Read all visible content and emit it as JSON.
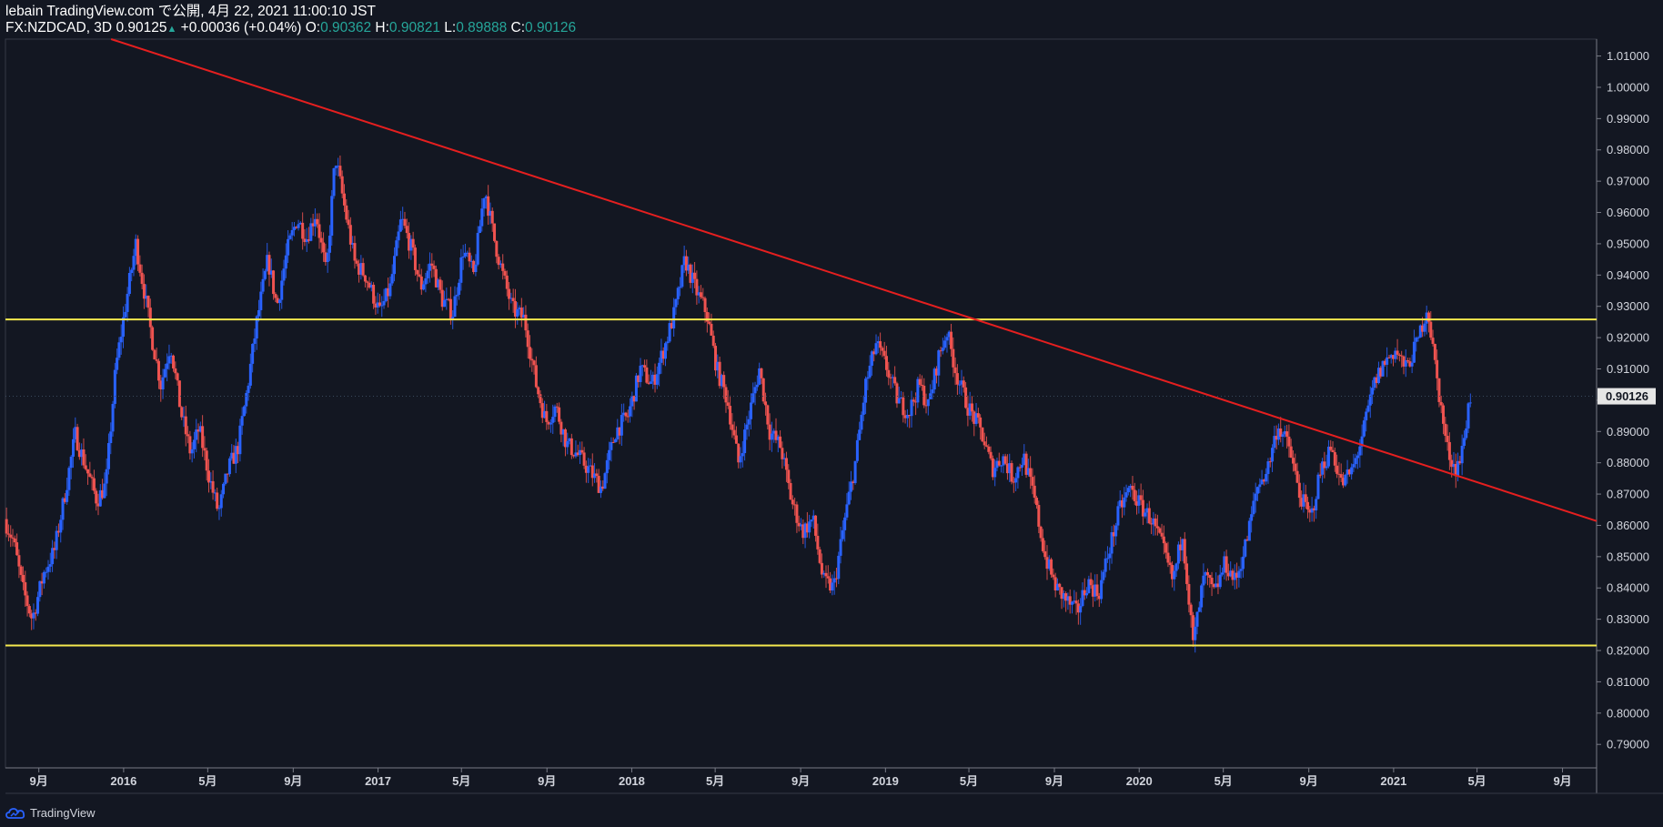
{
  "header": {
    "line1": "lebain TradingView.com で公開, 4月 22, 2021 11:00:10 JST",
    "symbol": "FX:NZDCAD, 3D",
    "last": "0.90125",
    "up_arrow": "▲",
    "change": "+0.00036 (+0.04%)",
    "o_label": "O:",
    "o_value": "0.90362",
    "h_label": "H:",
    "h_value": "0.90821",
    "l_label": "L:",
    "l_value": "0.89888",
    "c_label": "C:",
    "c_value": "0.90126"
  },
  "footer": {
    "brand": "TradingView",
    "logo_icon": "tradingview-cloud-icon"
  },
  "colors": {
    "background": "#131722",
    "up": "#2962ff",
    "down": "#ef5350",
    "trendline": "#e51f1f",
    "level": "#f5e94e",
    "axis_text": "#d1d4dc",
    "value_green": "#26a69a"
  },
  "chart_data": {
    "type": "candlestick",
    "symbol": "FX:NZDCAD",
    "timeframe": "3D",
    "title": "",
    "xlabel": "",
    "ylabel": "",
    "x_range": [
      "2015-07-15",
      "2021-10-20"
    ],
    "ylim": [
      0.7825,
      1.0154
    ],
    "y_ticks": [
      "1.01000",
      "1.00000",
      "0.99000",
      "0.98000",
      "0.97000",
      "0.96000",
      "0.95000",
      "0.94000",
      "0.93000",
      "0.92000",
      "0.91000",
      "0.90000",
      "0.89000",
      "0.88000",
      "0.87000",
      "0.86000",
      "0.85000",
      "0.84000",
      "0.83000",
      "0.82000",
      "0.81000",
      "0.80000",
      "0.79000"
    ],
    "y_tick_values": [
      1.01,
      1.0,
      0.99,
      0.98,
      0.97,
      0.96,
      0.95,
      0.94,
      0.93,
      0.92,
      0.91,
      0.9,
      0.89,
      0.88,
      0.87,
      0.86,
      0.85,
      0.84,
      0.83,
      0.82,
      0.81,
      0.8,
      0.79
    ],
    "x_ticks": [
      {
        "label": "9月",
        "date": "2015-09-01"
      },
      {
        "label": "2016",
        "date": "2016-01-01"
      },
      {
        "label": "5月",
        "date": "2016-05-01"
      },
      {
        "label": "9月",
        "date": "2016-09-01"
      },
      {
        "label": "2017",
        "date": "2017-01-01"
      },
      {
        "label": "5月",
        "date": "2017-05-01"
      },
      {
        "label": "9月",
        "date": "2017-09-01"
      },
      {
        "label": "2018",
        "date": "2018-01-01"
      },
      {
        "label": "5月",
        "date": "2018-05-01"
      },
      {
        "label": "9月",
        "date": "2018-09-01"
      },
      {
        "label": "2019",
        "date": "2019-01-01"
      },
      {
        "label": "5月",
        "date": "2019-05-01"
      },
      {
        "label": "9月",
        "date": "2019-09-01"
      },
      {
        "label": "2020",
        "date": "2020-01-01"
      },
      {
        "label": "5月",
        "date": "2020-05-01"
      },
      {
        "label": "9月",
        "date": "2020-09-01"
      },
      {
        "label": "2021",
        "date": "2021-01-01"
      },
      {
        "label": "5月",
        "date": "2021-05-01"
      },
      {
        "label": "9月",
        "date": "2021-09-01"
      }
    ],
    "current_price_label": "0.90126",
    "current_price": 0.90126,
    "path": [
      [
        "2015-07-15",
        0.862
      ],
      [
        "2015-07-28",
        0.855
      ],
      [
        "2015-08-10",
        0.84
      ],
      [
        "2015-08-24",
        0.83
      ],
      [
        "2015-09-10",
        0.845
      ],
      [
        "2015-09-25",
        0.852
      ],
      [
        "2015-10-10",
        0.87
      ],
      [
        "2015-10-25",
        0.889
      ],
      [
        "2015-11-10",
        0.878
      ],
      [
        "2015-11-25",
        0.868
      ],
      [
        "2015-12-08",
        0.873
      ],
      [
        "2015-12-22",
        0.91
      ],
      [
        "2016-01-05",
        0.93
      ],
      [
        "2016-01-20",
        0.95
      ],
      [
        "2016-02-01",
        0.935
      ],
      [
        "2016-02-12",
        0.92
      ],
      [
        "2016-02-25",
        0.905
      ],
      [
        "2016-03-10",
        0.918
      ],
      [
        "2016-03-25",
        0.896
      ],
      [
        "2016-04-08",
        0.883
      ],
      [
        "2016-04-20",
        0.891
      ],
      [
        "2016-05-05",
        0.875
      ],
      [
        "2016-05-18",
        0.864
      ],
      [
        "2016-06-01",
        0.878
      ],
      [
        "2016-06-15",
        0.885
      ],
      [
        "2016-06-28",
        0.903
      ],
      [
        "2016-07-12",
        0.925
      ],
      [
        "2016-07-28",
        0.945
      ],
      [
        "2016-08-10",
        0.93
      ],
      [
        "2016-08-25",
        0.948
      ],
      [
        "2016-09-08",
        0.958
      ],
      [
        "2016-09-22",
        0.952
      ],
      [
        "2016-10-05",
        0.96
      ],
      [
        "2016-10-20",
        0.94
      ],
      [
        "2016-11-02",
        0.978
      ],
      [
        "2016-11-15",
        0.962
      ],
      [
        "2016-11-30",
        0.944
      ],
      [
        "2016-12-15",
        0.94
      ],
      [
        "2017-01-05",
        0.928
      ],
      [
        "2017-01-20",
        0.936
      ],
      [
        "2017-02-05",
        0.958
      ],
      [
        "2017-02-20",
        0.948
      ],
      [
        "2017-03-05",
        0.936
      ],
      [
        "2017-03-20",
        0.944
      ],
      [
        "2017-04-05",
        0.932
      ],
      [
        "2017-04-20",
        0.928
      ],
      [
        "2017-05-05",
        0.948
      ],
      [
        "2017-05-20",
        0.94
      ],
      [
        "2017-06-05",
        0.968
      ],
      [
        "2017-06-18",
        0.952
      ],
      [
        "2017-07-01",
        0.94
      ],
      [
        "2017-07-15",
        0.929
      ],
      [
        "2017-08-01",
        0.926
      ],
      [
        "2017-08-18",
        0.905
      ],
      [
        "2017-09-01",
        0.893
      ],
      [
        "2017-09-15",
        0.898
      ],
      [
        "2017-10-01",
        0.886
      ],
      [
        "2017-10-15",
        0.883
      ],
      [
        "2017-11-01",
        0.878
      ],
      [
        "2017-11-20",
        0.872
      ],
      [
        "2017-12-10",
        0.89
      ],
      [
        "2017-12-28",
        0.895
      ],
      [
        "2018-01-15",
        0.91
      ],
      [
        "2018-02-01",
        0.905
      ],
      [
        "2018-02-20",
        0.918
      ],
      [
        "2018-03-05",
        0.928
      ],
      [
        "2018-03-20",
        0.945
      ],
      [
        "2018-04-05",
        0.935
      ],
      [
        "2018-04-20",
        0.928
      ],
      [
        "2018-05-05",
        0.91
      ],
      [
        "2018-05-20",
        0.9
      ],
      [
        "2018-06-05",
        0.88
      ],
      [
        "2018-06-20",
        0.895
      ],
      [
        "2018-07-05",
        0.91
      ],
      [
        "2018-07-20",
        0.89
      ],
      [
        "2018-08-05",
        0.885
      ],
      [
        "2018-08-20",
        0.868
      ],
      [
        "2018-09-05",
        0.858
      ],
      [
        "2018-09-20",
        0.862
      ],
      [
        "2018-10-05",
        0.842
      ],
      [
        "2018-10-20",
        0.84
      ],
      [
        "2018-11-05",
        0.862
      ],
      [
        "2018-11-20",
        0.88
      ],
      [
        "2018-12-05",
        0.905
      ],
      [
        "2018-12-20",
        0.918
      ],
      [
        "2019-01-05",
        0.91
      ],
      [
        "2019-01-20",
        0.9
      ],
      [
        "2019-02-05",
        0.896
      ],
      [
        "2019-02-20",
        0.905
      ],
      [
        "2019-03-05",
        0.898
      ],
      [
        "2019-03-20",
        0.914
      ],
      [
        "2019-04-01",
        0.922
      ],
      [
        "2019-04-15",
        0.908
      ],
      [
        "2019-05-01",
        0.898
      ],
      [
        "2019-05-20",
        0.89
      ],
      [
        "2019-06-05",
        0.878
      ],
      [
        "2019-06-20",
        0.882
      ],
      [
        "2019-07-05",
        0.875
      ],
      [
        "2019-07-20",
        0.882
      ],
      [
        "2019-08-05",
        0.868
      ],
      [
        "2019-08-20",
        0.85
      ],
      [
        "2019-09-05",
        0.84
      ],
      [
        "2019-09-20",
        0.836
      ],
      [
        "2019-10-05",
        0.832
      ],
      [
        "2019-10-20",
        0.842
      ],
      [
        "2019-11-05",
        0.838
      ],
      [
        "2019-11-20",
        0.852
      ],
      [
        "2019-12-05",
        0.865
      ],
      [
        "2019-12-20",
        0.872
      ],
      [
        "2020-01-05",
        0.866
      ],
      [
        "2020-01-20",
        0.862
      ],
      [
        "2020-02-05",
        0.853
      ],
      [
        "2020-02-20",
        0.842
      ],
      [
        "2020-03-05",
        0.858
      ],
      [
        "2020-03-20",
        0.822
      ],
      [
        "2020-04-05",
        0.844
      ],
      [
        "2020-04-20",
        0.838
      ],
      [
        "2020-05-05",
        0.848
      ],
      [
        "2020-05-20",
        0.842
      ],
      [
        "2020-06-05",
        0.855
      ],
      [
        "2020-06-20",
        0.872
      ],
      [
        "2020-07-05",
        0.878
      ],
      [
        "2020-07-20",
        0.892
      ],
      [
        "2020-08-05",
        0.885
      ],
      [
        "2020-08-20",
        0.87
      ],
      [
        "2020-09-05",
        0.862
      ],
      [
        "2020-09-20",
        0.878
      ],
      [
        "2020-10-05",
        0.885
      ],
      [
        "2020-10-20",
        0.873
      ],
      [
        "2020-11-05",
        0.878
      ],
      [
        "2020-11-20",
        0.89
      ],
      [
        "2020-12-05",
        0.905
      ],
      [
        "2020-12-20",
        0.912
      ],
      [
        "2021-01-05",
        0.916
      ],
      [
        "2021-01-20",
        0.91
      ],
      [
        "2021-02-05",
        0.918
      ],
      [
        "2021-02-20",
        0.93
      ],
      [
        "2021-03-05",
        0.908
      ],
      [
        "2021-03-20",
        0.885
      ],
      [
        "2021-04-01",
        0.878
      ],
      [
        "2021-04-10",
        0.882
      ],
      [
        "2021-04-22",
        0.901
      ]
    ],
    "trendlines": [
      {
        "color": "#e51f1f",
        "points": [
          [
            "2015-12-14",
            1.0154
          ],
          [
            "2021-10-20",
            0.8614
          ]
        ]
      }
    ],
    "horizontal_levels": [
      {
        "color": "#f5e94e",
        "price": 0.9258
      },
      {
        "color": "#f5e94e",
        "price": 0.8216
      }
    ]
  }
}
